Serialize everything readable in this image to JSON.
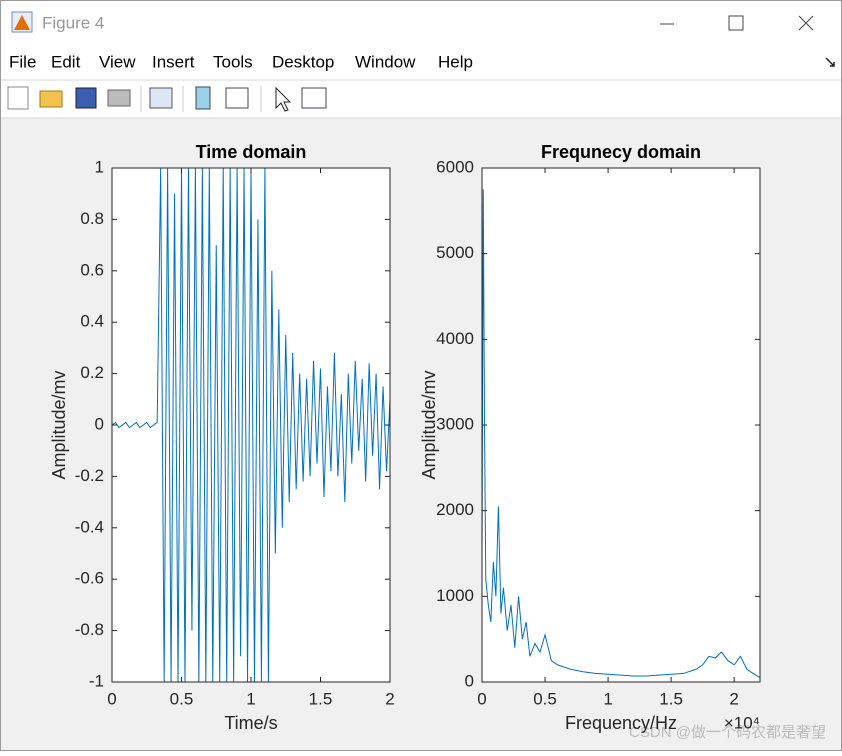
{
  "window": {
    "title": "Figure 4",
    "menu": [
      "File",
      "Edit",
      "View",
      "Insert",
      "Tools",
      "Desktop",
      "Window",
      "Help"
    ]
  },
  "chart_data": [
    {
      "type": "line",
      "title": "Time domain",
      "xlabel": "Time/s",
      "ylabel": "Amplitude/mv",
      "xlim": [
        0,
        2
      ],
      "ylim": [
        -1,
        1
      ],
      "xticks": [
        0,
        0.5,
        1,
        1.5,
        2
      ],
      "yticks": [
        -1,
        -0.8,
        -0.6,
        -0.4,
        -0.2,
        0,
        0.2,
        0.4,
        0.6,
        0.8,
        1
      ],
      "series": [
        {
          "color": "#0072bd",
          "x": [
            0,
            0.025,
            0.05,
            0.075,
            0.1,
            0.125,
            0.15,
            0.175,
            0.2,
            0.225,
            0.25,
            0.275,
            0.3,
            0.325,
            0.35,
            0.375,
            0.4,
            0.425,
            0.45,
            0.475,
            0.5,
            0.525,
            0.55,
            0.575,
            0.6,
            0.625,
            0.65,
            0.675,
            0.7,
            0.725,
            0.75,
            0.775,
            0.8,
            0.825,
            0.85,
            0.875,
            0.9,
            0.925,
            0.95,
            0.975,
            1,
            1.025,
            1.05,
            1.075,
            1.1,
            1.125,
            1.15,
            1.175,
            1.2,
            1.225,
            1.25,
            1.275,
            1.3,
            1.325,
            1.35,
            1.375,
            1.4,
            1.425,
            1.45,
            1.475,
            1.5,
            1.525,
            1.55,
            1.575,
            1.6,
            1.625,
            1.65,
            1.675,
            1.7,
            1.725,
            1.75,
            1.775,
            1.8,
            1.825,
            1.85,
            1.875,
            1.9,
            1.925,
            1.95,
            1.975,
            2
          ],
          "values": [
            0,
            0.01,
            -0.01,
            0,
            0.01,
            -0.01,
            0,
            0.01,
            -0.01,
            0,
            0.01,
            -0.01,
            0,
            0.01,
            1,
            -1,
            1,
            -1,
            0.9,
            -1,
            1,
            -1,
            1,
            -0.8,
            1,
            -1,
            1,
            -1,
            1,
            -1,
            0.7,
            -1,
            1,
            -1,
            1,
            -1,
            1,
            -0.9,
            1,
            -1,
            1,
            -1,
            0.8,
            -1,
            1,
            -1,
            0.6,
            -0.5,
            0.45,
            -0.4,
            0.35,
            -0.3,
            0.28,
            -0.25,
            0.2,
            -0.22,
            0.18,
            -0.2,
            0.25,
            -0.15,
            0.22,
            -0.28,
            0.15,
            -0.18,
            0.28,
            -0.2,
            0.12,
            -0.3,
            0.2,
            -0.15,
            0.25,
            -0.1,
            0.18,
            -0.22,
            0.24,
            -0.12,
            0.2,
            -0.25,
            0.15,
            -0.18,
            0.1
          ]
        }
      ]
    },
    {
      "type": "line",
      "title": "Frequnecy domain",
      "xlabel": "Frequency/Hz",
      "ylabel": "Amplitude/mv",
      "x_exponent_label": "×10⁴",
      "xlim": [
        0,
        22050
      ],
      "ylim": [
        0,
        6000
      ],
      "xticks": [
        0,
        {
          "value": 5000,
          "label": "0.5"
        },
        {
          "value": 10000,
          "label": "1"
        },
        {
          "value": 15000,
          "label": "1.5"
        },
        {
          "value": 20000,
          "label": "2"
        }
      ],
      "yticks": [
        0,
        1000,
        2000,
        3000,
        4000,
        5000,
        6000
      ],
      "series": [
        {
          "color": "#0072bd",
          "x": [
            0,
            100,
            200,
            300,
            500,
            700,
            900,
            1100,
            1300,
            1500,
            1700,
            2000,
            2300,
            2600,
            2900,
            3200,
            3500,
            3800,
            4200,
            4600,
            5000,
            5500,
            6000,
            7000,
            8000,
            9000,
            10000,
            11000,
            12000,
            13000,
            14000,
            15000,
            16000,
            17000,
            17500,
            18000,
            18500,
            19000,
            19500,
            20000,
            20500,
            21000,
            21500,
            22050
          ],
          "values": [
            1500,
            5750,
            3000,
            1200,
            900,
            700,
            1400,
            1000,
            2050,
            800,
            1100,
            600,
            900,
            400,
            1000,
            500,
            700,
            300,
            450,
            350,
            550,
            250,
            200,
            150,
            120,
            100,
            90,
            80,
            70,
            70,
            80,
            90,
            100,
            150,
            200,
            300,
            280,
            350,
            250,
            200,
            300,
            150,
            100,
            50
          ]
        }
      ]
    }
  ],
  "watermark": "CSDN @做一个码农都是奢望"
}
